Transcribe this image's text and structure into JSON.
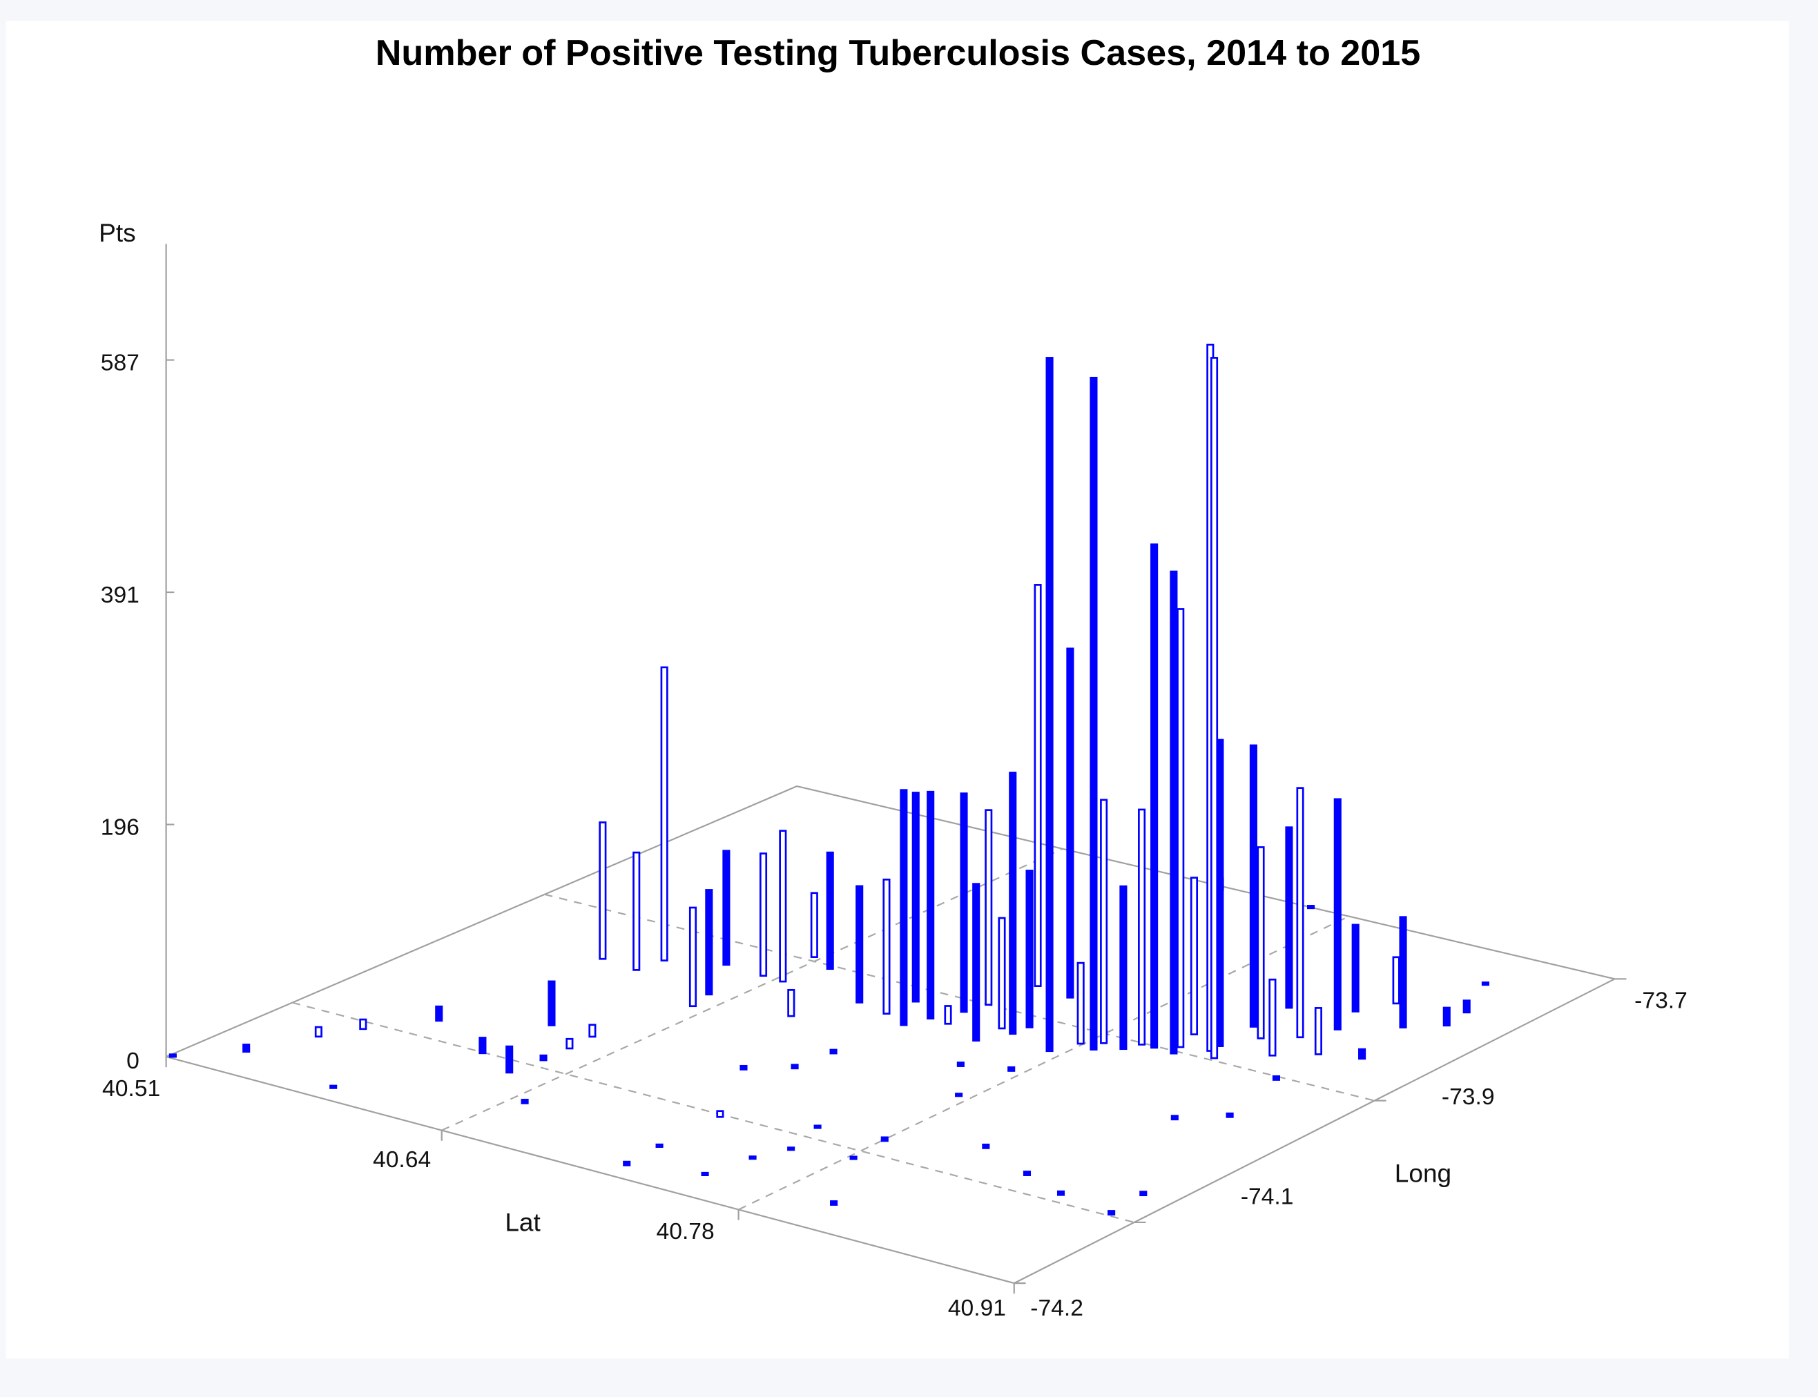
{
  "chart_data": {
    "type": "needle3d",
    "title": "Number of Positive Testing Tuberculosis Cases, 2014 to 2015",
    "xlabel": "Lat",
    "ylabel": "Long",
    "zlabel": "Pts",
    "xlim": [
      40.51,
      40.91
    ],
    "ylim": [
      -74.2,
      -73.7
    ],
    "zlim": [
      0,
      587
    ],
    "x_ticks": [
      "40.51",
      "40.64",
      "40.78",
      "40.91"
    ],
    "y_ticks": [
      "-74.2",
      "-74.1",
      "-73.9",
      "-73.7"
    ],
    "z_ticks": [
      "0",
      "196",
      "391",
      "587"
    ],
    "grid": true,
    "color": "#0000ff",
    "points": [
      {
        "lat": 40.825,
        "long": -73.89,
        "pts": 595,
        "style": "hollow"
      },
      {
        "lat": 40.831,
        "long": -73.897,
        "pts": 590,
        "style": "hollow"
      },
      {
        "lat": 40.774,
        "long": -73.935,
        "pts": 584,
        "style": "filled"
      },
      {
        "lat": 40.787,
        "long": -73.921,
        "pts": 566,
        "style": "filled"
      },
      {
        "lat": 40.805,
        "long": -73.902,
        "pts": 424,
        "style": "filled"
      },
      {
        "lat": 40.815,
        "long": -73.903,
        "pts": 406,
        "style": "filled"
      },
      {
        "lat": 40.813,
        "long": -73.894,
        "pts": 369,
        "style": "hollow"
      },
      {
        "lat": 40.727,
        "long": -73.865,
        "pts": 338,
        "style": "hollow"
      },
      {
        "lat": 40.745,
        "long": -73.869,
        "pts": 294,
        "style": "filled"
      },
      {
        "lat": 40.593,
        "long": -73.942,
        "pts": 247,
        "style": "hollow"
      },
      {
        "lat": 40.573,
        "long": -73.958,
        "pts": 115,
        "style": "hollow"
      },
      {
        "lat": 40.825,
        "long": -73.882,
        "pts": 258,
        "style": "filled"
      },
      {
        "lat": 40.823,
        "long": -73.851,
        "pts": 237,
        "style": "filled"
      },
      {
        "lat": 40.852,
        "long": -73.831,
        "pts": 194,
        "style": "filled"
      },
      {
        "lat": 40.845,
        "long": -73.85,
        "pts": 210,
        "style": "hollow"
      },
      {
        "lat": 40.872,
        "long": -73.811,
        "pts": 93,
        "style": "filled"
      },
      {
        "lat": 40.751,
        "long": -73.926,
        "pts": 220,
        "style": "filled"
      },
      {
        "lat": 40.711,
        "long": -73.947,
        "pts": 198,
        "style": "filled"
      },
      {
        "lat": 40.715,
        "long": -73.932,
        "pts": 191,
        "style": "filled"
      },
      {
        "lat": 40.721,
        "long": -73.915,
        "pts": 184,
        "style": "filled"
      },
      {
        "lat": 40.724,
        "long": -73.9,
        "pts": 164,
        "style": "hollow"
      },
      {
        "lat": 40.644,
        "long": -73.932,
        "pts": 127,
        "style": "hollow"
      },
      {
        "lat": 40.615,
        "long": -73.929,
        "pts": 96,
        "style": "filled"
      },
      {
        "lat": 40.634,
        "long": -73.931,
        "pts": 103,
        "style": "hollow"
      },
      {
        "lat": 40.65,
        "long": -73.904,
        "pts": 98,
        "style": "filled"
      },
      {
        "lat": 40.591,
        "long": -73.961,
        "pts": 99,
        "style": "hollow"
      },
      {
        "lat": 40.633,
        "long": -73.986,
        "pts": 83,
        "style": "hollow"
      },
      {
        "lat": 40.63,
        "long": -73.968,
        "pts": 88,
        "style": "filled"
      },
      {
        "lat": 40.67,
        "long": -73.969,
        "pts": 22,
        "style": "hollow"
      },
      {
        "lat": 40.637,
        "long": -73.895,
        "pts": 54,
        "style": "hollow"
      },
      {
        "lat": 40.682,
        "long": -73.934,
        "pts": 98,
        "style": "filled"
      },
      {
        "lat": 40.698,
        "long": -73.939,
        "pts": 113,
        "style": "hollow"
      },
      {
        "lat": 40.699,
        "long": -73.917,
        "pts": 176,
        "style": "filled"
      },
      {
        "lat": 40.724,
        "long": -73.933,
        "pts": 15,
        "style": "hollow"
      },
      {
        "lat": 40.744,
        "long": -73.944,
        "pts": 132,
        "style": "filled"
      },
      {
        "lat": 40.744,
        "long": -73.923,
        "pts": 93,
        "style": "hollow"
      },
      {
        "lat": 40.752,
        "long": -73.914,
        "pts": 132,
        "style": "filled"
      },
      {
        "lat": 40.779,
        "long": -73.918,
        "pts": 68,
        "style": "hollow"
      },
      {
        "lat": 40.786,
        "long": -73.911,
        "pts": 205,
        "style": "hollow"
      },
      {
        "lat": 40.796,
        "long": -73.912,
        "pts": 137,
        "style": "filled"
      },
      {
        "lat": 40.799,
        "long": -73.902,
        "pts": 198,
        "style": "hollow"
      },
      {
        "lat": 40.809,
        "long": -73.876,
        "pts": 132,
        "style": "hollow"
      },
      {
        "lat": 40.833,
        "long": -73.862,
        "pts": 161,
        "style": "hollow"
      },
      {
        "lat": 40.848,
        "long": -73.878,
        "pts": 64,
        "style": "hollow"
      },
      {
        "lat": 40.822,
        "long": -73.82,
        "pts": 152,
        "style": "filled"
      },
      {
        "lat": 40.862,
        "long": -73.864,
        "pts": 39,
        "style": "hollow"
      },
      {
        "lat": 40.846,
        "long": -73.806,
        "pts": 73,
        "style": "filled"
      },
      {
        "lat": 40.854,
        "long": -73.786,
        "pts": 39,
        "style": "hollow"
      },
      {
        "lat": 40.566,
        "long": -74.077,
        "pts": 12,
        "style": "filled"
      },
      {
        "lat": 40.603,
        "long": -74.049,
        "pts": 37,
        "style": "filled"
      },
      {
        "lat": 40.622,
        "long": -74.115,
        "pts": 22,
        "style": "filled"
      },
      {
        "lat": 40.601,
        "long": -74.101,
        "pts": 13,
        "style": "filled"
      },
      {
        "lat": 40.549,
        "long": -74.109,
        "pts": 8,
        "style": "hollow"
      },
      {
        "lat": 40.541,
        "long": -74.131,
        "pts": 8,
        "style": "hollow"
      },
      {
        "lat": 40.53,
        "long": -74.17,
        "pts": 6,
        "style": "filled"
      },
      {
        "lat": 40.512,
        "long": -74.198,
        "pts": 2,
        "style": "filled"
      },
      {
        "lat": 40.624,
        "long": -74.07,
        "pts": 8,
        "style": "hollow"
      },
      {
        "lat": 40.623,
        "long": -74.05,
        "pts": 10,
        "style": "hollow"
      },
      {
        "lat": 40.624,
        "long": -74.091,
        "pts": 4,
        "style": "filled"
      },
      {
        "lat": 40.879,
        "long": -73.857,
        "pts": 8,
        "style": "filled"
      },
      {
        "lat": 40.885,
        "long": -73.797,
        "pts": 15,
        "style": "filled"
      },
      {
        "lat": 40.883,
        "long": -73.777,
        "pts": 10,
        "style": "filled"
      },
      {
        "lat": 40.871,
        "long": -73.741,
        "pts": 2,
        "style": "filled"
      },
      {
        "lat": 40.762,
        "long": -73.701,
        "pts": 2,
        "style": "filled"
      },
      {
        "lat": 40.72,
        "long": -73.705,
        "pts": 10,
        "style": "hollow"
      },
      {
        "lat": 40.58,
        "long": -74.185,
        "pts": 2,
        "style": "filled"
      },
      {
        "lat": 40.647,
        "long": -74.145,
        "pts": 3,
        "style": "filled"
      },
      {
        "lat": 40.718,
        "long": -74.184,
        "pts": 3,
        "style": "filled"
      },
      {
        "lat": 40.716,
        "long": -74.154,
        "pts": 2,
        "style": "filled"
      },
      {
        "lat": 40.748,
        "long": -74.172,
        "pts": 2,
        "style": "filled"
      },
      {
        "lat": 40.715,
        "long": -74.103,
        "pts": 5,
        "style": "hollow"
      },
      {
        "lat": 40.691,
        "long": -74.043,
        "pts": 3,
        "style": "filled"
      },
      {
        "lat": 40.752,
        "long": -74.14,
        "pts": 2,
        "style": "filled"
      },
      {
        "lat": 40.758,
        "long": -74.119,
        "pts": 2,
        "style": "filled"
      },
      {
        "lat": 40.706,
        "long": -74.027,
        "pts": 3,
        "style": "filled"
      },
      {
        "lat": 40.752,
        "long": -74.087,
        "pts": 2,
        "style": "filled"
      },
      {
        "lat": 40.806,
        "long": -74.167,
        "pts": 3,
        "style": "filled"
      },
      {
        "lat": 40.708,
        "long": -73.999,
        "pts": 3,
        "style": "filled"
      },
      {
        "lat": 40.783,
        "long": -74.111,
        "pts": 2,
        "style": "filled"
      },
      {
        "lat": 40.781,
        "long": -74.082,
        "pts": 3,
        "style": "filled"
      },
      {
        "lat": 40.756,
        "long": -73.977,
        "pts": 3,
        "style": "filled"
      },
      {
        "lat": 40.775,
        "long": -74.011,
        "pts": 2,
        "style": "filled"
      },
      {
        "lat": 40.817,
        "long": -74.061,
        "pts": 3,
        "style": "filled"
      },
      {
        "lat": 40.775,
        "long": -73.968,
        "pts": 3,
        "style": "filled"
      },
      {
        "lat": 40.847,
        "long": -74.079,
        "pts": 3,
        "style": "filled"
      },
      {
        "lat": 40.87,
        "long": -74.091,
        "pts": 3,
        "style": "filled"
      },
      {
        "lat": 40.898,
        "long": -74.098,
        "pts": 3,
        "style": "filled"
      },
      {
        "lat": 40.896,
        "long": -74.068,
        "pts": 3,
        "style": "filled"
      },
      {
        "lat": 40.858,
        "long": -73.976,
        "pts": 3,
        "style": "filled"
      },
      {
        "lat": 40.874,
        "long": -73.958,
        "pts": 3,
        "style": "filled"
      },
      {
        "lat": 40.865,
        "long": -73.904,
        "pts": 3,
        "style": "filled"
      }
    ]
  }
}
